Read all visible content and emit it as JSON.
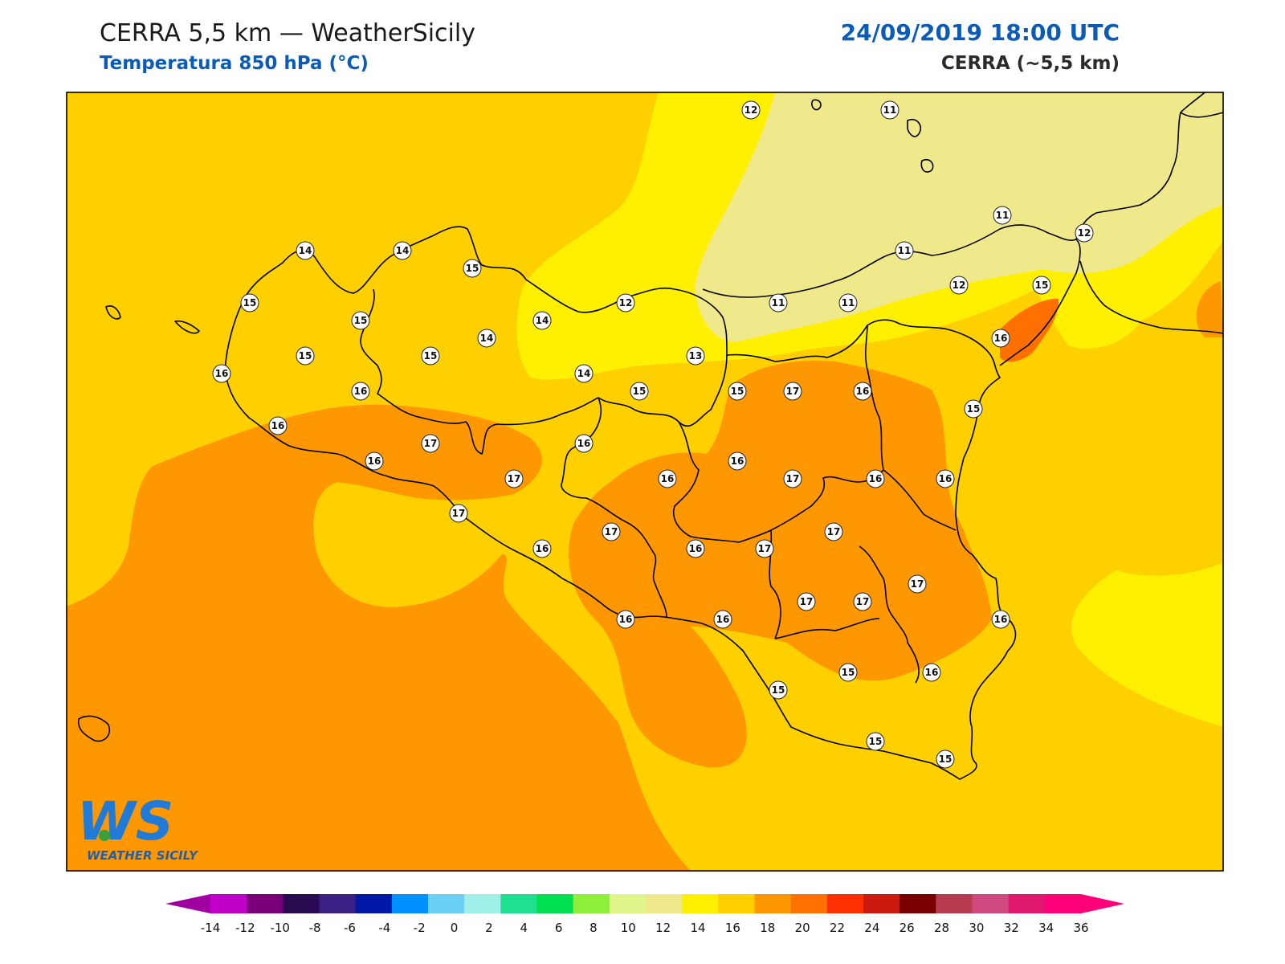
{
  "header": {
    "title": "CERRA 5,5 km — WeatherSicily",
    "subtitle": "Temperatura 850 hPa (°C)",
    "datetime": "24/09/2019 18:00 UTC",
    "model": "CERRA (~5,5 km)"
  },
  "logo": {
    "letters": "WS",
    "name": "WEATHER SICILY"
  },
  "colorbar": {
    "ticks": [
      "-14",
      "-12",
      "-10",
      "-8",
      "-6",
      "-4",
      "-2",
      "0",
      "2",
      "4",
      "6",
      "8",
      "10",
      "12",
      "14",
      "16",
      "18",
      "20",
      "22",
      "24",
      "26",
      "28",
      "30",
      "32",
      "34",
      "36"
    ],
    "colors": [
      "#c000c8",
      "#7a007a",
      "#2a0a50",
      "#3a2085",
      "#0018a8",
      "#0090ff",
      "#6ccff5",
      "#9ef0e8",
      "#1ee090",
      "#00e050",
      "#8ef03a",
      "#dff58a",
      "#f0e98c",
      "#fff000",
      "#ffd000",
      "#ff9800",
      "#ff7000",
      "#ff3000",
      "#cc1a10",
      "#7a0000",
      "#b83c50",
      "#d04a80",
      "#e01870",
      "#ff0078"
    ],
    "low_arrow_color": "#a000a0",
    "high_arrow_color": "#ff0078"
  },
  "map": {
    "fill_colors": {
      "t10_12": "#f0e98c",
      "t12_14": "#fff000",
      "t14_16": "#ffd000",
      "t16_18": "#ff9800",
      "t18_20": "#ff7000"
    },
    "points": [
      {
        "label": "12"
      },
      {
        "label": "11"
      },
      {
        "label": "11"
      },
      {
        "label": "12"
      },
      {
        "label": "11"
      },
      {
        "label": "14"
      },
      {
        "label": "14"
      },
      {
        "label": "15"
      },
      {
        "label": "15"
      },
      {
        "label": "12"
      },
      {
        "label": "11"
      },
      {
        "label": "11"
      },
      {
        "label": "12"
      },
      {
        "label": "15"
      },
      {
        "label": "15"
      },
      {
        "label": "14"
      },
      {
        "label": "15"
      },
      {
        "label": "15"
      },
      {
        "label": "13"
      },
      {
        "label": "16"
      },
      {
        "label": "14"
      },
      {
        "label": "16"
      },
      {
        "label": "14"
      },
      {
        "label": "15"
      },
      {
        "label": "15"
      },
      {
        "label": "17"
      },
      {
        "label": "16"
      },
      {
        "label": "15"
      },
      {
        "label": "16"
      },
      {
        "label": "17"
      },
      {
        "label": "16"
      },
      {
        "label": "16"
      },
      {
        "label": "16"
      },
      {
        "label": "16"
      },
      {
        "label": "16"
      },
      {
        "label": "17"
      },
      {
        "label": "16"
      },
      {
        "label": "16"
      },
      {
        "label": "17"
      },
      {
        "label": "17"
      },
      {
        "label": "17"
      },
      {
        "label": "16"
      },
      {
        "label": "17"
      },
      {
        "label": "17"
      },
      {
        "label": "17"
      },
      {
        "label": "17"
      },
      {
        "label": "16"
      },
      {
        "label": "16"
      },
      {
        "label": "16"
      },
      {
        "label": "16"
      },
      {
        "label": "15"
      },
      {
        "label": "15"
      },
      {
        "label": "15"
      },
      {
        "label": "17"
      },
      {
        "label": "16"
      },
      {
        "label": "15"
      }
    ]
  }
}
